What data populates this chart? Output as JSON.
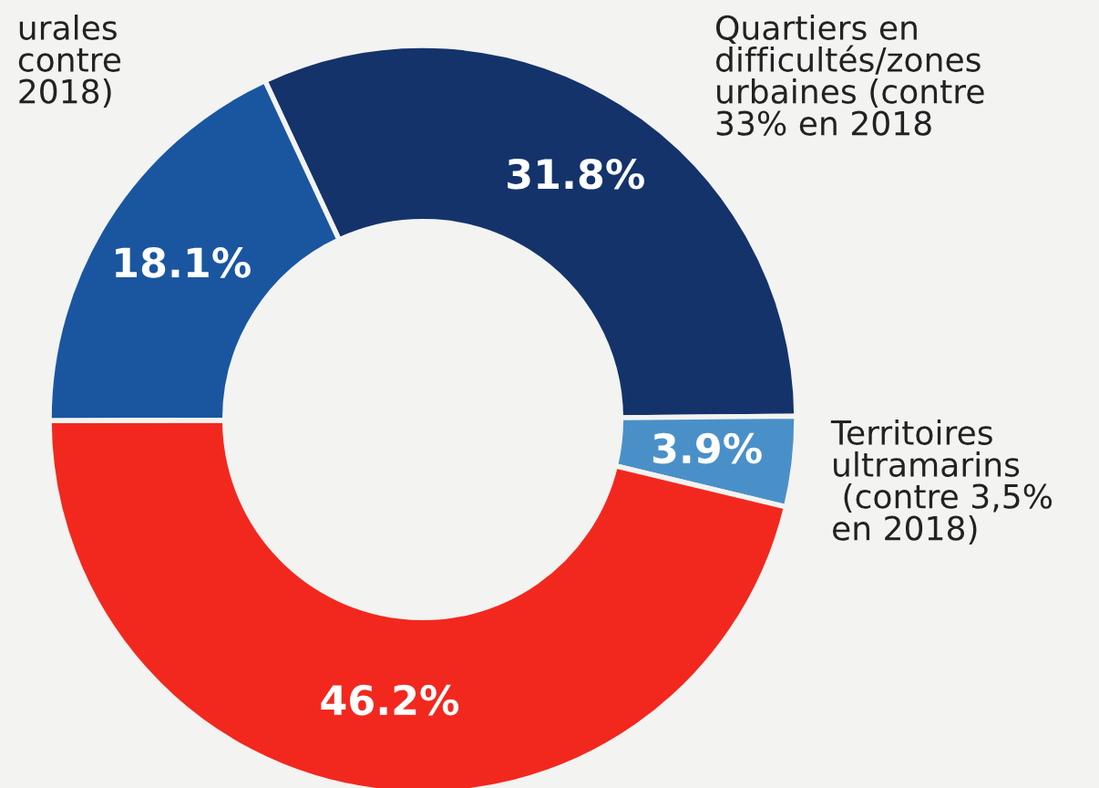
{
  "chart_data": {
    "type": "donut",
    "categories": [
      "Quartiers en\ndifficultés/zones\nurbaines (contre\n33% en 2018",
      "Territoires\nultramarins\n (contre 3,5%\nen 2018)",
      null,
      "urales\ncontre\n2018)"
    ],
    "values": [
      31.8,
      3.9,
      46.2,
      18.1
    ],
    "colors": [
      "#14336b",
      "#4a90c8",
      "#f2281e",
      "#1a56a0"
    ],
    "value_labels": [
      "31.8%",
      "3.9%",
      "46.2%",
      "18.1%"
    ],
    "legend": false
  }
}
